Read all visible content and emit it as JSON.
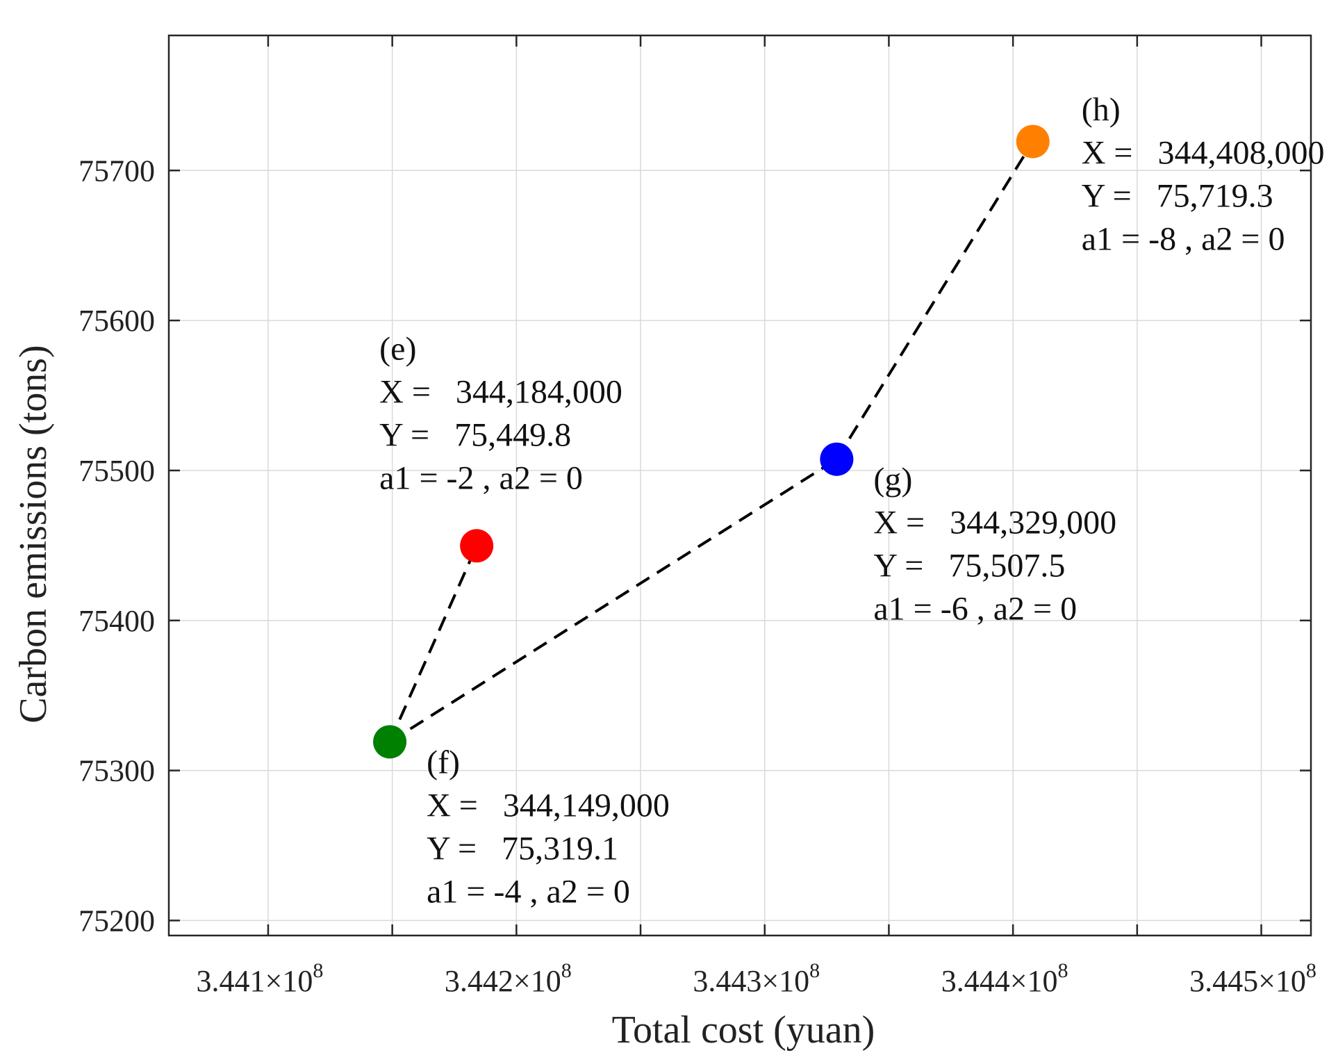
{
  "chart_data": {
    "type": "scatter",
    "title": "",
    "xlabel": "Total cost (yuan)",
    "ylabel": "Carbon emissions (tons)",
    "xlim": [
      344060000,
      344520000
    ],
    "ylim": [
      75190,
      75790
    ],
    "grid": true,
    "x_ticks": [
      {
        "value": 344100000,
        "mantissa": "3.441",
        "times": "×10",
        "exp": "8"
      },
      {
        "value": 344200000,
        "mantissa": "3.442",
        "times": "×10",
        "exp": "8"
      },
      {
        "value": 344300000,
        "mantissa": "3.443",
        "times": "×10",
        "exp": "8"
      },
      {
        "value": 344400000,
        "mantissa": "3.444",
        "times": "×10",
        "exp": "8"
      },
      {
        "value": 344500000,
        "mantissa": "3.445",
        "times": "×10",
        "exp": "8"
      }
    ],
    "x_minor_ticks": [
      344150000,
      344250000,
      344350000,
      344450000
    ],
    "y_ticks": [
      {
        "value": 75200,
        "label": "75200"
      },
      {
        "value": 75300,
        "label": "75300"
      },
      {
        "value": 75400,
        "label": "75400"
      },
      {
        "value": 75500,
        "label": "75500"
      },
      {
        "value": 75600,
        "label": "75600"
      },
      {
        "value": 75700,
        "label": "75700"
      }
    ],
    "points": [
      {
        "id": "e",
        "x": 344184000,
        "y": 75449.8,
        "color": "#ff0000",
        "label_anchor": "above-left",
        "lines": [
          "(e)",
          "X =   344,184,000",
          "Y =   75,449.8",
          "a1 = -2 , a2 = 0"
        ]
      },
      {
        "id": "f",
        "x": 344149000,
        "y": 75319.1,
        "color": "#008000",
        "label_anchor": "below-right",
        "lines": [
          "(f)",
          "X =   344,149,000",
          "Y =   75,319.1",
          "a1 = -4 , a2 = 0"
        ]
      },
      {
        "id": "g",
        "x": 344329000,
        "y": 75507.5,
        "color": "#0000ff",
        "label_anchor": "below-right",
        "lines": [
          "(g)",
          "X =   344,329,000",
          "Y =   75,507.5",
          "a1 = -6 , a2 = 0"
        ]
      },
      {
        "id": "h",
        "x": 344408000,
        "y": 75719.3,
        "color": "#ff8000",
        "label_anchor": "right",
        "lines": [
          "(h)",
          "X =   344,408,000",
          "Y =   75,719.3",
          "a1 = -8 , a2 = 0"
        ]
      }
    ],
    "connections": [
      [
        "f",
        "e"
      ],
      [
        "f",
        "g"
      ],
      [
        "g",
        "h"
      ]
    ]
  }
}
